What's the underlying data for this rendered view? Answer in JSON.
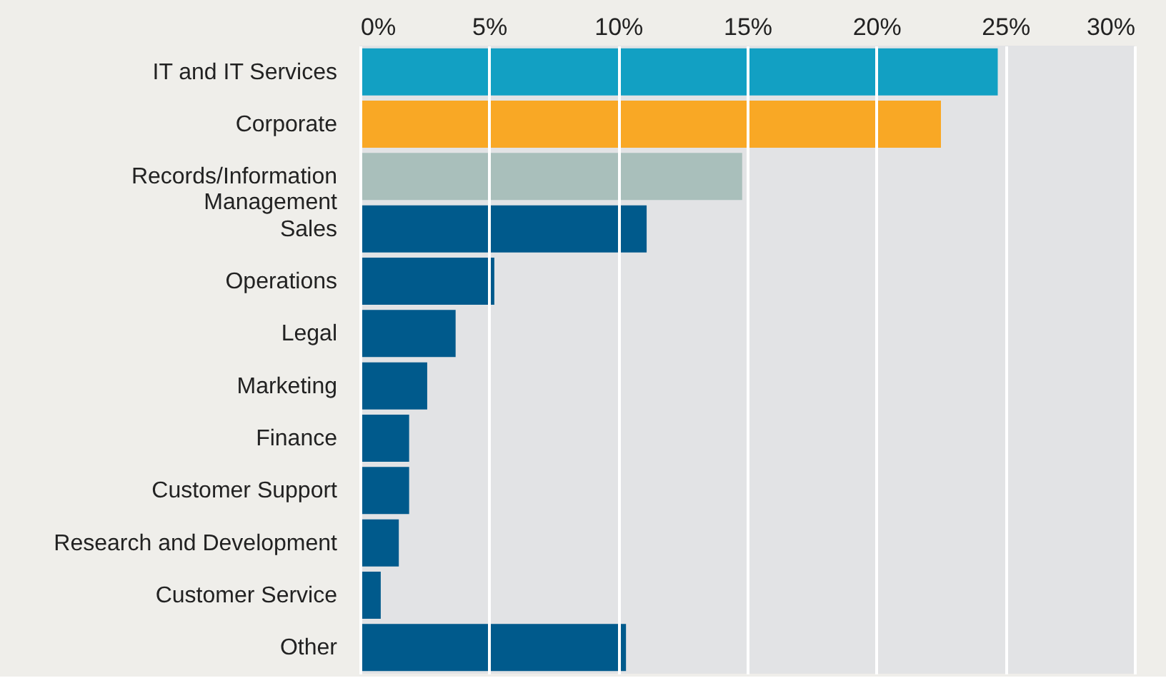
{
  "chart_data": {
    "type": "bar",
    "orientation": "horizontal",
    "categories": [
      "IT and IT Services",
      "Corporate",
      "Records/Information Management",
      "Sales",
      "Operations",
      "Legal",
      "Marketing",
      "Finance",
      "Customer Support",
      "Research and Development",
      "Customer Service",
      "Other"
    ],
    "values": [
      24.7,
      22.5,
      14.8,
      11.1,
      5.2,
      3.7,
      2.6,
      1.9,
      1.9,
      1.5,
      0.8,
      10.3
    ],
    "colors": [
      "#12a0c3",
      "#f9a825",
      "#a9bfbb",
      "#005a8c",
      "#005a8c",
      "#005a8c",
      "#005a8c",
      "#005a8c",
      "#005a8c",
      "#005a8c",
      "#005a8c",
      "#005a8c"
    ],
    "xlim": [
      0,
      30
    ],
    "xticks": [
      {
        "value": 0,
        "label": "0%"
      },
      {
        "value": 5,
        "label": "5%"
      },
      {
        "value": 10,
        "label": "10%"
      },
      {
        "value": 15,
        "label": "15%"
      },
      {
        "value": 20,
        "label": "20%"
      },
      {
        "value": 25,
        "label": "25%"
      },
      {
        "value": 30,
        "label": "30%"
      }
    ],
    "grid": "x"
  }
}
